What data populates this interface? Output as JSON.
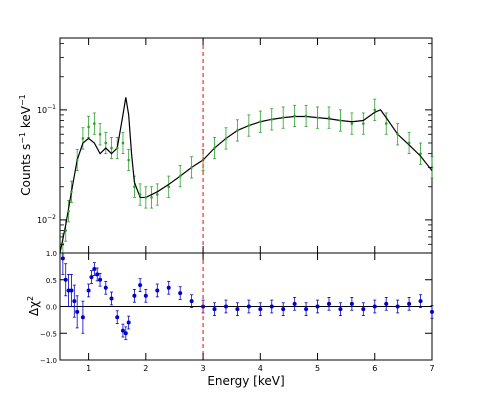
{
  "chart_data": [
    {
      "type": "scatter",
      "panel": "spectrum",
      "ylabel": "Counts s",
      "ylabel_sup1": "−1",
      "ylabel_mid": " keV",
      "ylabel_sup2": "−1",
      "y_scale": "log",
      "xlim": [
        0.5,
        7
      ],
      "ylim": [
        0.005,
        0.45
      ],
      "ytick_labels": [
        {
          "base": "10",
          "exp": "−2",
          "value": 0.01
        },
        {
          "base": "10",
          "exp": "−1",
          "value": 0.1
        }
      ],
      "series": [
        {
          "role": "data points with error bars",
          "color": "#2ca02c",
          "x": [
            0.55,
            0.6,
            0.65,
            0.7,
            0.8,
            0.9,
            1.0,
            1.1,
            1.2,
            1.3,
            1.4,
            1.5,
            1.6,
            1.7,
            1.8,
            1.9,
            2.0,
            2.1,
            2.2,
            2.4,
            2.6,
            2.8,
            3.0,
            3.2,
            3.4,
            3.6,
            3.8,
            4.0,
            4.2,
            4.4,
            4.6,
            4.8,
            5.0,
            5.2,
            5.4,
            5.6,
            5.8,
            6.0,
            6.2,
            6.4,
            6.6,
            6.8,
            7.0
          ],
          "y": [
            0.006,
            0.008,
            0.012,
            0.018,
            0.035,
            0.055,
            0.07,
            0.075,
            0.06,
            0.05,
            0.045,
            0.045,
            0.05,
            0.035,
            0.02,
            0.017,
            0.016,
            0.016,
            0.017,
            0.02,
            0.025,
            0.03,
            0.035,
            0.045,
            0.055,
            0.065,
            0.072,
            0.078,
            0.082,
            0.085,
            0.088,
            0.088,
            0.085,
            0.085,
            0.08,
            0.075,
            0.075,
            0.1,
            0.075,
            0.06,
            0.05,
            0.04,
            0.03
          ]
        },
        {
          "role": "model",
          "color": "#000000",
          "x": [
            0.5,
            0.6,
            0.7,
            0.8,
            0.9,
            1.0,
            1.1,
            1.2,
            1.3,
            1.4,
            1.5,
            1.6,
            1.65,
            1.7,
            1.75,
            1.8,
            1.9,
            2.0,
            2.2,
            2.4,
            2.6,
            2.8,
            3.0,
            3.2,
            3.4,
            3.6,
            3.8,
            4.0,
            4.2,
            4.4,
            4.6,
            4.8,
            5.0,
            5.2,
            5.4,
            5.6,
            5.8,
            6.0,
            6.1,
            6.2,
            6.4,
            6.6,
            6.8,
            7.0
          ],
          "y": [
            0.005,
            0.009,
            0.018,
            0.035,
            0.05,
            0.055,
            0.05,
            0.04,
            0.045,
            0.04,
            0.045,
            0.09,
            0.13,
            0.09,
            0.04,
            0.022,
            0.016,
            0.016,
            0.018,
            0.021,
            0.025,
            0.03,
            0.035,
            0.045,
            0.055,
            0.065,
            0.072,
            0.078,
            0.082,
            0.085,
            0.087,
            0.087,
            0.085,
            0.083,
            0.08,
            0.078,
            0.08,
            0.095,
            0.1,
            0.085,
            0.06,
            0.048,
            0.038,
            0.028
          ]
        }
      ],
      "annotations": [
        {
          "type": "vertical dashed line",
          "x": 3.0,
          "color": "#ff0000"
        }
      ]
    },
    {
      "type": "scatter",
      "panel": "residuals",
      "xlabel": "Energy [keV]",
      "ylabel": "Δχ",
      "ylabel_sup": "2",
      "xlim": [
        0.5,
        7
      ],
      "ylim": [
        -1.0,
        1.0
      ],
      "xtick_labels": [
        "1",
        "2",
        "3",
        "4",
        "5",
        "6",
        "7"
      ],
      "ytick_labels": [
        "1.0",
        "0.5",
        "0.0",
        "−0.5",
        "−1.0"
      ],
      "series": [
        {
          "role": "residual points with error bars",
          "color": "#0000cc",
          "x": [
            0.55,
            0.6,
            0.65,
            0.7,
            0.75,
            0.8,
            0.9,
            1.0,
            1.05,
            1.1,
            1.15,
            1.2,
            1.3,
            1.4,
            1.5,
            1.6,
            1.65,
            1.7,
            1.8,
            1.9,
            2.0,
            2.2,
            2.4,
            2.6,
            2.8,
            3.0,
            3.2,
            3.4,
            3.6,
            3.8,
            4.0,
            4.2,
            4.4,
            4.6,
            4.8,
            5.0,
            5.2,
            5.4,
            5.6,
            5.8,
            6.0,
            6.2,
            6.4,
            6.6,
            6.8,
            7.0
          ],
          "y": [
            0.9,
            0.5,
            0.3,
            0.3,
            0.1,
            -0.1,
            -0.2,
            0.3,
            0.55,
            0.7,
            0.6,
            0.5,
            0.35,
            0.15,
            -0.2,
            -0.45,
            -0.5,
            -0.3,
            0.2,
            0.4,
            0.2,
            0.3,
            0.35,
            0.25,
            0.1,
            0.0,
            -0.05,
            0.0,
            -0.05,
            0.0,
            -0.05,
            0.0,
            -0.05,
            0.05,
            -0.05,
            0.0,
            0.05,
            -0.05,
            0.05,
            -0.05,
            0.0,
            0.05,
            0.0,
            0.05,
            0.1,
            -0.1
          ]
        }
      ],
      "reference_line": {
        "y": 0.0,
        "color": "#000000"
      },
      "annotations": [
        {
          "type": "vertical dashed line",
          "x": 3.0,
          "color": "#ff0000"
        }
      ]
    }
  ]
}
